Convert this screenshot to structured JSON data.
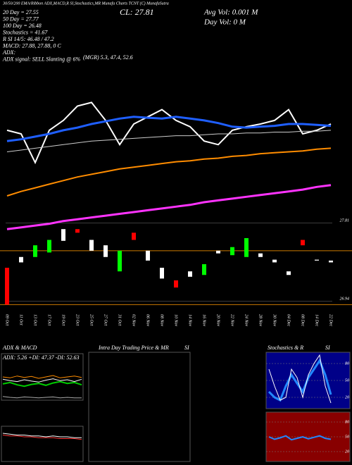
{
  "header": {
    "top": "30/50/200 EMA/Ribbon ADX,MACD,R SI,Stochastics,MR   Munafa Charts TCNT   (C) MunafaSutra",
    "lines": [
      "20 Day = 27.55",
      "50 Day = 27.77",
      "100 Day = 26.48",
      "Stochastics = 41.67",
      "R SI 14/5: 46.48 / 47.2",
      "MACD: 27.88, 27.88, 0  C",
      "ADX:",
      "ADX  signal: SELL Slanting @ 6%"
    ],
    "mgr": "(MGR) 5.3, 47.4, 52.6",
    "cl": "CL: 27.81",
    "avg_vol": "Avg Vol: 0.001 M",
    "day_vol": "Day Vol: 0  M"
  },
  "chart_data": [
    {
      "type": "candlestick",
      "categories": [
        "09 Oct",
        "11 Oct",
        "13 Oct",
        "17 Oct",
        "19 Oct",
        "23 Oct",
        "25 Oct",
        "27 Oct",
        "31 Oct",
        "02 Nov",
        "06 Nov",
        "08 Nov",
        "10 Nov",
        "14 Nov",
        "16 Nov",
        "20 Nov",
        "22 Nov",
        "24 Nov",
        "28 Nov",
        "30 Nov",
        "04 Dec",
        "08 Dec",
        "14 Dec",
        "22 Dec"
      ],
      "open": [
        27.31,
        27.43,
        27.43,
        27.48,
        27.74,
        27.74,
        27.62,
        27.56,
        27.27,
        27.7,
        27.5,
        27.31,
        27.17,
        27.27,
        27.23,
        27.5,
        27.45,
        27.43,
        27.47,
        27.4,
        27.27,
        27.62,
        27.4,
        27.39
      ],
      "close": [
        26.9,
        27.37,
        27.56,
        27.62,
        27.61,
        27.7,
        27.5,
        27.43,
        27.5,
        27.62,
        27.39,
        27.19,
        27.09,
        27.21,
        27.35,
        27.47,
        27.54,
        27.64,
        27.43,
        27.37,
        27.23,
        27.56,
        27.39,
        27.37
      ],
      "candle_colors": [
        "#ff0000",
        "#ffffff",
        "#00ff00",
        "#00ff00",
        "#ffffff",
        "#ff0000",
        "#ffffff",
        "#ffffff",
        "#00ff00",
        "#ff0000",
        "#ffffff",
        "#ffffff",
        "#ff0000",
        "#ffffff",
        "#00ff00",
        "#ffffff",
        "#00ff00",
        "#00ff00",
        "#ffffff",
        "#ffffff",
        "#ffffff",
        "#ff0000",
        "#ffffff",
        "#ffffff"
      ],
      "series": [
        {
          "color": "#ffffff",
          "width": 2,
          "values": [
            28.84,
            28.8,
            28.48,
            28.84,
            28.95,
            29.11,
            29.15,
            28.95,
            28.68,
            28.91,
            28.99,
            29.07,
            28.95,
            28.88,
            28.72,
            28.68,
            28.84,
            28.88,
            28.91,
            28.95,
            29.07,
            28.8,
            28.84,
            28.91
          ]
        },
        {
          "color": "#1f5fff",
          "width": 3,
          "values": [
            28.72,
            28.74,
            28.77,
            28.8,
            28.84,
            28.87,
            28.91,
            28.94,
            28.97,
            28.99,
            28.98,
            28.97,
            28.99,
            28.97,
            28.95,
            28.92,
            28.88,
            28.87,
            28.88,
            28.89,
            28.91,
            28.91,
            28.9,
            28.89
          ]
        },
        {
          "color": "#cccccc",
          "width": 1,
          "values": [
            28.6,
            28.62,
            28.64,
            28.66,
            28.68,
            28.7,
            28.72,
            28.73,
            28.74,
            28.75,
            28.76,
            28.77,
            28.78,
            28.78,
            28.79,
            28.8,
            28.8,
            28.81,
            28.81,
            28.82,
            28.82,
            28.83,
            28.83,
            28.84
          ]
        },
        {
          "color": "#ff8c00",
          "width": 2,
          "values": [
            28.11,
            28.16,
            28.2,
            28.24,
            28.28,
            28.32,
            28.35,
            28.38,
            28.41,
            28.43,
            28.45,
            28.47,
            28.49,
            28.5,
            28.52,
            28.53,
            28.55,
            28.56,
            28.58,
            28.59,
            28.6,
            28.61,
            28.63,
            28.64
          ]
        },
        {
          "color": "#ff33ff",
          "width": 3,
          "values": [
            27.74,
            27.76,
            27.78,
            27.8,
            27.83,
            27.85,
            27.87,
            27.89,
            27.91,
            27.93,
            27.95,
            27.97,
            27.99,
            28.01,
            28.04,
            28.06,
            28.08,
            28.1,
            28.12,
            28.14,
            28.16,
            28.18,
            28.21,
            28.23
          ]
        }
      ],
      "hlines": [
        27.5,
        26.9
      ],
      "hline_color": "#cc7a00",
      "ylim": [
        26.84,
        30.29
      ],
      "yticks": [
        27.81,
        26.94
      ]
    },
    {
      "type": "line",
      "title": "ADX  & MACD",
      "annotation": "ADX: 5.26  +DI: 47.37  -DI: 52.63",
      "series": [
        {
          "color": "#00cc00",
          "width": 2,
          "values": [
            35,
            38,
            33,
            30,
            34,
            36,
            32,
            37,
            40,
            36,
            38,
            33
          ]
        },
        {
          "color": "#ffffff",
          "width": 1,
          "values": [
            45,
            42,
            40,
            44,
            41,
            39,
            43,
            46,
            42,
            44,
            40,
            45
          ]
        },
        {
          "color": "#ff8c00",
          "width": 1,
          "values": [
            50,
            48,
            52,
            49,
            51,
            47,
            50,
            53,
            48,
            50,
            52,
            49
          ]
        },
        {
          "color": "#aaaaaa",
          "width": 1,
          "values": [
            8,
            6,
            5,
            7,
            6,
            5,
            6,
            7,
            5,
            6,
            5,
            5
          ]
        }
      ],
      "ylim": [
        0,
        100
      ]
    },
    {
      "type": "line",
      "series": [
        {
          "color": "#ffffff",
          "width": 1,
          "values": [
            0.6,
            0.55,
            0.5,
            0.5,
            0.45,
            0.45,
            0.4,
            0.45,
            0.4,
            0.4,
            0.35,
            0.35
          ]
        },
        {
          "color": "#ff3333",
          "width": 1,
          "values": [
            0.5,
            0.45,
            0.45,
            0.4,
            0.4,
            0.35,
            0.35,
            0.35,
            0.3,
            0.3,
            0.3,
            0.25
          ]
        }
      ],
      "ylim": [
        -1,
        1
      ]
    },
    {
      "type": "empty",
      "title": "Intra Day Trading Price  & MR",
      "subtitle": "SI"
    },
    {
      "type": "line",
      "title": "Stochastics & R",
      "subtitle": "SI",
      "background": "#000088",
      "series": [
        {
          "color": "#2288ff",
          "width": 3,
          "values": [
            30,
            20,
            15,
            40,
            60,
            45,
            30,
            55,
            70,
            85,
            60,
            25
          ]
        },
        {
          "color": "#ffffff",
          "width": 1,
          "values": [
            70,
            40,
            15,
            20,
            70,
            55,
            20,
            60,
            80,
            95,
            40,
            10
          ]
        }
      ],
      "ylim": [
        0,
        100
      ],
      "yticks": [
        80,
        50,
        20
      ]
    },
    {
      "type": "line",
      "background": "#880000",
      "series": [
        {
          "color": "#2288ff",
          "width": 2,
          "values": [
            50,
            45,
            48,
            52,
            44,
            47,
            50,
            46,
            49,
            52,
            47,
            45
          ]
        }
      ],
      "ylim": [
        0,
        100
      ],
      "yticks": [
        80,
        50,
        20
      ]
    }
  ]
}
